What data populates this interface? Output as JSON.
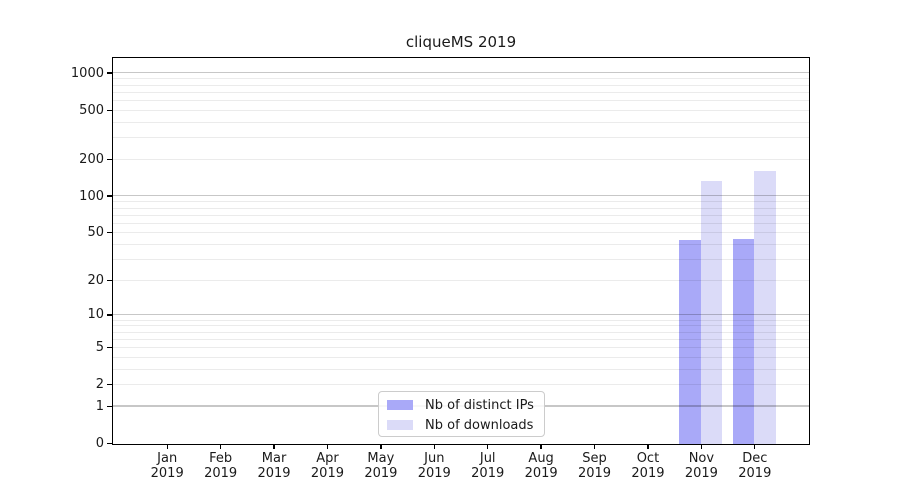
{
  "chart": {
    "title": "cliqueMS 2019"
  },
  "chart_data": {
    "type": "bar",
    "title": "cliqueMS 2019",
    "categories": [
      "Jan 2019",
      "Feb 2019",
      "Mar 2019",
      "Apr 2019",
      "May 2019",
      "Jun 2019",
      "Jul 2019",
      "Aug 2019",
      "Sep 2019",
      "Oct 2019",
      "Nov 2019",
      "Dec 2019"
    ],
    "series": [
      {
        "name": "Nb of distinct IPs",
        "color": "#a9a9f8",
        "values": [
          0,
          0,
          0,
          0,
          0,
          0,
          0,
          0,
          0,
          0,
          44,
          45
        ]
      },
      {
        "name": "Nb of downloads",
        "color": "#dbdbf8",
        "values": [
          0,
          0,
          0,
          0,
          0,
          0,
          0,
          0,
          0,
          0,
          135,
          160
        ]
      }
    ],
    "xlabel": "",
    "ylabel": "",
    "y_scale": "log10(value+1)",
    "y_tick_values": [
      0,
      1,
      2,
      5,
      10,
      20,
      50,
      100,
      200,
      500,
      1000
    ],
    "major_grid_values": [
      1,
      10,
      100,
      1000
    ],
    "ylim": [
      0,
      1300
    ],
    "grid": true,
    "legend_position": "lower center, inside plot"
  },
  "colors": {
    "grid_minor": "rgba(0,0,0,0.08)",
    "grid_major": "rgba(0,0,0,0.22)",
    "spine": "#000000",
    "text": "#1a1a1a",
    "legend_border": "#cccccc",
    "background": "#ffffff"
  }
}
